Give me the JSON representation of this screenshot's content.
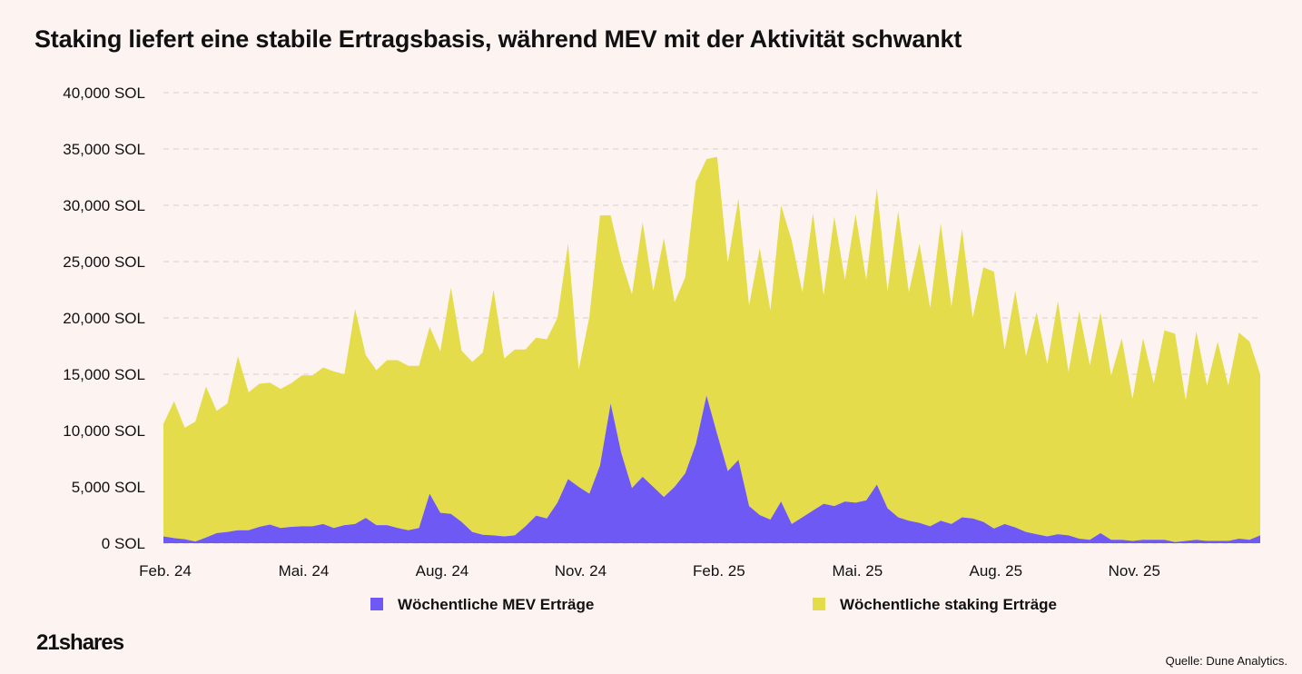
{
  "title": "Staking liefert eine stabile Ertragsbasis, während MEV mit der Aktivität schwankt",
  "brand": "21shares",
  "source": "Quelle: Dune Analytics.",
  "colors": {
    "background": "#fdf4f2",
    "mev": "#6e59f5",
    "staking": "#e5dc4b",
    "grid": "#d9d0cc"
  },
  "chart_data": {
    "type": "area",
    "stacked": true,
    "ylim": [
      0,
      40000
    ],
    "yticks": [
      0,
      5000,
      10000,
      15000,
      20000,
      25000,
      30000,
      35000,
      40000
    ],
    "ytick_labels": [
      "0 SOL",
      "5,000 SOL",
      "10,000 SOL",
      "15,000 SOL",
      "20,000 SOL",
      "25,000 SOL",
      "30,000 SOL",
      "35,000 SOL",
      "40,000 SOL"
    ],
    "x_tick_labels": [
      "Feb. 24",
      "Mai. 24",
      "Aug. 24",
      "Nov. 24",
      "Feb. 25",
      "Mai. 25",
      "Aug. 25",
      "Nov. 25"
    ],
    "x_tick_index": [
      0,
      13,
      26,
      39,
      52,
      65,
      78,
      91
    ],
    "weeks": 104,
    "grid": "horizontal dashed",
    "legend_position": "bottom",
    "series": [
      {
        "name": "Wöchentliche MEV Erträge",
        "color": "#6e59f5",
        "values": [
          600,
          450,
          350,
          150,
          500,
          900,
          1000,
          1150,
          1150,
          1450,
          1650,
          1350,
          1450,
          1500,
          1500,
          1700,
          1350,
          1600,
          1700,
          2250,
          1600,
          1600,
          1350,
          1150,
          1350,
          4400,
          2700,
          2600,
          1900,
          1000,
          750,
          700,
          600,
          700,
          1500,
          2450,
          2200,
          3600,
          5700,
          5000,
          4400,
          6900,
          12400,
          8000,
          4900,
          5900,
          5000,
          4100,
          5000,
          6200,
          8800,
          13100,
          9700,
          6400,
          7400,
          3300,
          2500,
          2100,
          3700,
          1700,
          2300,
          2900,
          3500,
          3300,
          3700,
          3600,
          3800,
          5200,
          3100,
          2300,
          2000,
          1800,
          1500,
          2000,
          1700,
          2300,
          2200,
          1900,
          1300,
          1700,
          1400,
          1000,
          800,
          600,
          800,
          700,
          400,
          300,
          900,
          300,
          300,
          200,
          300,
          300,
          300,
          100,
          200,
          300,
          200,
          200,
          200,
          400,
          300,
          700
        ]
      },
      {
        "name": "Wöchentliche staking Erträge",
        "color": "#e5dc4b",
        "values": [
          10000,
          12150,
          9900,
          10650,
          13400,
          10850,
          11400,
          15450,
          12250,
          12700,
          12600,
          12350,
          12750,
          13400,
          13400,
          13900,
          13900,
          13400,
          19100,
          14450,
          13750,
          14650,
          14900,
          14600,
          14400,
          14800,
          14350,
          20100,
          15200,
          15100,
          16200,
          21800,
          15800,
          16500,
          15700,
          15800,
          15900,
          16400,
          20900,
          10400,
          15700,
          22200,
          16700,
          17100,
          17200,
          22600,
          17400,
          23000,
          16400,
          17400,
          23300,
          21000,
          24600,
          18500,
          23200,
          17800,
          23700,
          18600,
          26300,
          25200,
          20000,
          26400,
          18500,
          25700,
          19700,
          25600,
          19600,
          26300,
          19300,
          27200,
          20300,
          24800,
          19400,
          26400,
          19300,
          25600,
          17800,
          22600,
          22800,
          15500,
          21000,
          15600,
          19700,
          15300,
          20700,
          14500,
          20200,
          15500,
          19600,
          14600,
          17900,
          12600,
          17900,
          13900,
          18600,
          18500,
          12500,
          18500,
          13800,
          17700,
          13800,
          18300,
          17600,
          14300
        ]
      }
    ]
  }
}
